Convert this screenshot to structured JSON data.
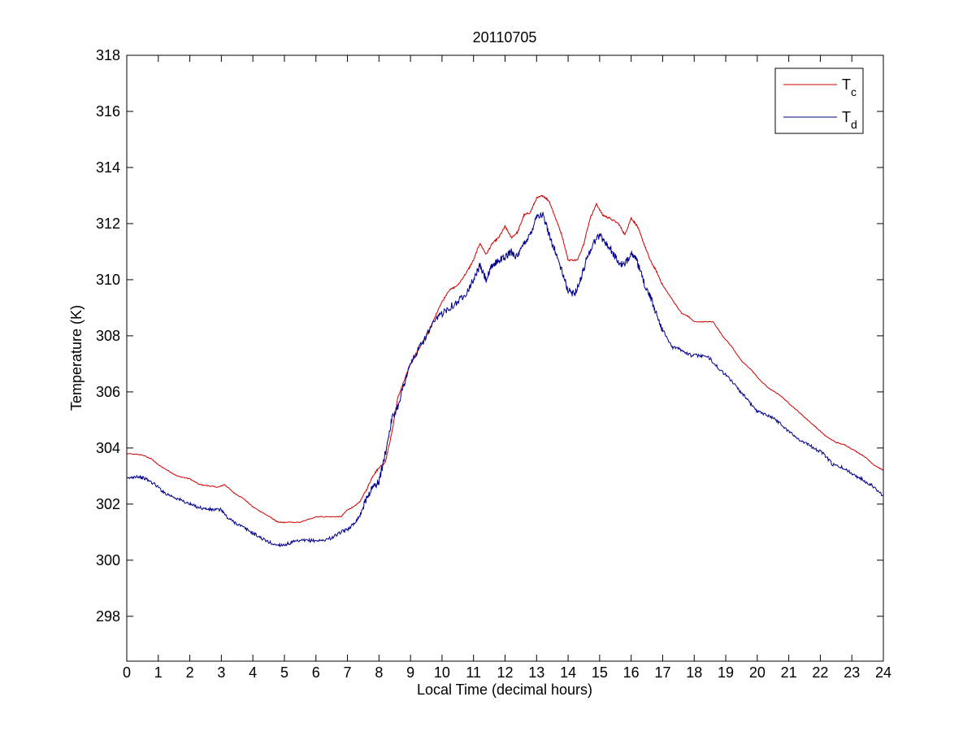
{
  "chart_data": {
    "type": "line",
    "title": "20110705",
    "xlabel": "Local Time (decimal hours)",
    "ylabel": "Temperature (K)",
    "xlim": [
      0,
      24
    ],
    "ylim": [
      296.4,
      318
    ],
    "xticks": [
      0,
      1,
      2,
      3,
      4,
      5,
      6,
      7,
      8,
      9,
      10,
      11,
      12,
      13,
      14,
      15,
      16,
      17,
      18,
      19,
      20,
      21,
      22,
      23,
      24
    ],
    "yticks": [
      298,
      300,
      302,
      304,
      306,
      308,
      310,
      312,
      314,
      316,
      318
    ],
    "grid": false,
    "legend": "top-right",
    "series": [
      {
        "name": "Tc",
        "name_base": "T",
        "name_sub": "c",
        "color": "#cc0000",
        "x": [
          0,
          0.5,
          0.8,
          1.0,
          1.3,
          1.6,
          2.0,
          2.3,
          2.6,
          2.9,
          3.1,
          3.4,
          3.7,
          4.0,
          4.3,
          4.6,
          4.8,
          5.0,
          5.5,
          6.0,
          6.5,
          6.8,
          7.0,
          7.2,
          7.4,
          7.6,
          7.8,
          8.0,
          8.2,
          8.4,
          8.6,
          8.8,
          9.0,
          9.3,
          9.6,
          9.9,
          10.2,
          10.5,
          10.8,
          11.0,
          11.2,
          11.4,
          11.6,
          11.8,
          12.0,
          12.2,
          12.4,
          12.6,
          12.8,
          13.0,
          13.2,
          13.4,
          13.6,
          13.8,
          14.0,
          14.3,
          14.5,
          14.7,
          14.9,
          15.1,
          15.3,
          15.6,
          15.8,
          16.0,
          16.2,
          16.4,
          16.6,
          16.8,
          17.0,
          17.3,
          17.6,
          17.8,
          18.0,
          18.3,
          18.6,
          18.9,
          19.2,
          19.5,
          19.8,
          20.1,
          20.4,
          20.7,
          21.0,
          21.3,
          21.6,
          21.9,
          22.2,
          22.5,
          22.8,
          23.1,
          23.4,
          23.7,
          24.0
        ],
        "y": [
          303.8,
          303.75,
          303.6,
          303.4,
          303.2,
          303.0,
          302.9,
          302.7,
          302.65,
          302.6,
          302.7,
          302.4,
          302.2,
          301.9,
          301.7,
          301.5,
          301.35,
          301.35,
          301.35,
          301.55,
          301.55,
          301.55,
          301.8,
          301.9,
          302.1,
          302.5,
          303.0,
          303.3,
          303.5,
          304.5,
          305.8,
          306.4,
          307.0,
          307.6,
          308.2,
          309.0,
          309.6,
          309.8,
          310.3,
          310.7,
          311.3,
          310.9,
          311.3,
          311.5,
          311.9,
          311.5,
          311.7,
          312.3,
          312.4,
          312.9,
          313.0,
          312.8,
          312.2,
          311.6,
          310.7,
          310.7,
          311.3,
          312.2,
          312.7,
          312.3,
          312.2,
          312.0,
          311.6,
          312.2,
          311.9,
          311.3,
          310.7,
          310.3,
          309.8,
          309.3,
          308.8,
          308.7,
          308.5,
          308.5,
          308.5,
          308.0,
          307.6,
          307.1,
          306.8,
          306.4,
          306.1,
          305.9,
          305.6,
          305.3,
          305.0,
          304.7,
          304.4,
          304.2,
          304.1,
          303.9,
          303.7,
          303.4,
          303.2
        ]
      },
      {
        "name": "Td",
        "name_base": "T",
        "name_sub": "d",
        "color": "#00008b",
        "x": [
          0,
          0.3,
          0.6,
          0.9,
          1.2,
          1.5,
          1.8,
          2.1,
          2.4,
          2.7,
          3.0,
          3.2,
          3.5,
          3.8,
          4.1,
          4.4,
          4.7,
          5.0,
          5.3,
          5.6,
          5.9,
          6.2,
          6.5,
          6.8,
          7.0,
          7.2,
          7.4,
          7.6,
          7.8,
          8.0,
          8.2,
          8.4,
          8.6,
          8.8,
          9.0,
          9.3,
          9.6,
          9.9,
          10.2,
          10.5,
          10.8,
          11.0,
          11.2,
          11.4,
          11.6,
          11.8,
          12.0,
          12.2,
          12.4,
          12.6,
          12.8,
          13.0,
          13.2,
          13.4,
          13.6,
          13.8,
          14.0,
          14.2,
          14.4,
          14.6,
          14.8,
          15.0,
          15.2,
          15.4,
          15.6,
          15.8,
          16.0,
          16.2,
          16.4,
          16.6,
          16.8,
          17.0,
          17.3,
          17.6,
          17.9,
          18.2,
          18.5,
          18.8,
          19.1,
          19.4,
          19.7,
          20.0,
          20.3,
          20.6,
          20.9,
          21.2,
          21.5,
          21.8,
          22.1,
          22.4,
          22.7,
          23.0,
          23.3,
          23.6,
          24.0
        ],
        "y": [
          302.9,
          303.0,
          302.9,
          302.7,
          302.4,
          302.25,
          302.1,
          301.95,
          301.85,
          301.8,
          301.8,
          301.5,
          301.3,
          301.1,
          300.9,
          300.7,
          300.55,
          300.55,
          300.65,
          300.7,
          300.7,
          300.7,
          300.8,
          301.0,
          301.1,
          301.3,
          301.6,
          302.2,
          302.6,
          302.8,
          303.8,
          305.0,
          305.5,
          306.3,
          307.0,
          307.6,
          308.2,
          308.7,
          309.0,
          309.2,
          309.6,
          310.0,
          310.5,
          310.0,
          310.5,
          310.7,
          310.8,
          311.0,
          310.8,
          311.3,
          311.6,
          312.3,
          312.3,
          311.6,
          311.0,
          310.3,
          309.6,
          309.5,
          310.0,
          310.8,
          311.3,
          311.6,
          311.3,
          311.0,
          310.6,
          310.5,
          311.0,
          310.6,
          309.9,
          309.4,
          308.8,
          308.2,
          307.6,
          307.5,
          307.3,
          307.3,
          307.2,
          306.8,
          306.5,
          306.1,
          305.7,
          305.3,
          305.2,
          305.0,
          304.7,
          304.4,
          304.2,
          304.0,
          303.8,
          303.4,
          303.3,
          303.1,
          302.9,
          302.7,
          302.3
        ]
      }
    ]
  }
}
